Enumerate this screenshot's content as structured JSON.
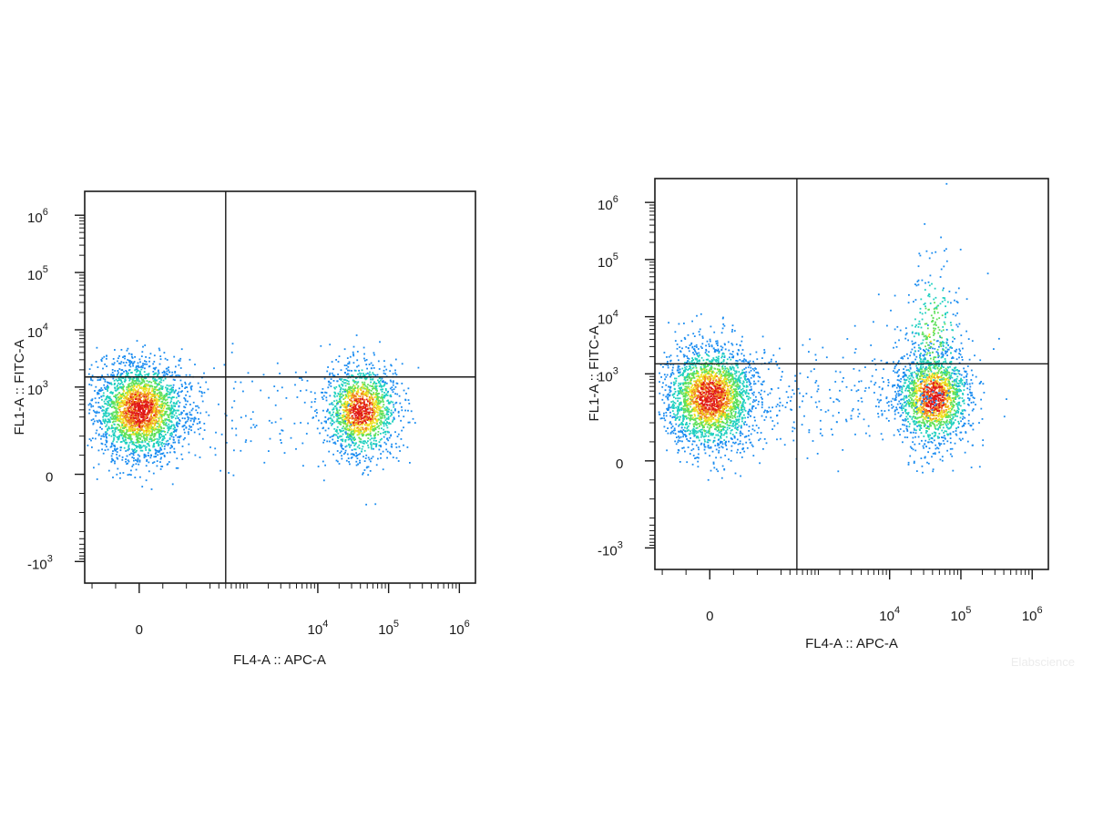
{
  "watermark": "Elabscience",
  "chart_data": [
    {
      "type": "scatter",
      "subtype": "flow-cytometry-density-dot-plot",
      "title": "",
      "xlabel": "FL4-A :: APC-A",
      "ylabel": "FL1-A :: FITC-A",
      "x_scale": "biexponential",
      "y_scale": "biexponential",
      "x_ticks": [
        {
          "value": 0,
          "base": "0",
          "exp": ""
        },
        {
          "value": 10000,
          "base": "10",
          "exp": "4"
        },
        {
          "value": 100000,
          "base": "10",
          "exp": "5"
        },
        {
          "value": 1000000,
          "base": "10",
          "exp": "6"
        }
      ],
      "y_ticks": [
        {
          "value": -1000,
          "base": "-10",
          "exp": "3"
        },
        {
          "value": 0,
          "base": "0",
          "exp": ""
        },
        {
          "value": 1000,
          "base": "10",
          "exp": "3"
        },
        {
          "value": 10000,
          "base": "10",
          "exp": "4"
        },
        {
          "value": 100000,
          "base": "10",
          "exp": "5"
        },
        {
          "value": 1000000,
          "base": "10",
          "exp": "6"
        }
      ],
      "quadrant_gate": {
        "x": 500,
        "y": 1500
      },
      "populations": [
        {
          "name": "",
          "x_center": 0,
          "y_center": 400,
          "events": 2600
        },
        {
          "name": "",
          "x_center": 40000,
          "y_center": 400,
          "events": 1500
        },
        {
          "name": "",
          "x_center": 2000,
          "y_center": 400,
          "events": 130
        }
      ],
      "grid": false,
      "legend": "none"
    },
    {
      "type": "scatter",
      "subtype": "flow-cytometry-density-dot-plot",
      "title": "",
      "xlabel": "FL4-A :: APC-A",
      "ylabel": "FL1-A :: FITC-A",
      "x_scale": "biexponential",
      "y_scale": "biexponential",
      "x_ticks": [
        {
          "value": 0,
          "base": "0",
          "exp": ""
        },
        {
          "value": 10000,
          "base": "10",
          "exp": "4"
        },
        {
          "value": 100000,
          "base": "10",
          "exp": "5"
        },
        {
          "value": 1000000,
          "base": "10",
          "exp": "6"
        }
      ],
      "y_ticks": [
        {
          "value": -1000,
          "base": "-10",
          "exp": "3"
        },
        {
          "value": 0,
          "base": "0",
          "exp": ""
        },
        {
          "value": 1000,
          "base": "10",
          "exp": "3"
        },
        {
          "value": 10000,
          "base": "10",
          "exp": "4"
        },
        {
          "value": 100000,
          "base": "10",
          "exp": "5"
        },
        {
          "value": 1000000,
          "base": "10",
          "exp": "6"
        }
      ],
      "quadrant_gate": {
        "x": 500,
        "y": 1500
      },
      "populations": [
        {
          "name": "",
          "x_center": 0,
          "y_center": 400,
          "events": 2600
        },
        {
          "name": "",
          "x_center": 40000,
          "y_center": 400,
          "events": 1700
        },
        {
          "name": "",
          "x_center": 40000,
          "y_center": 5000,
          "events": 300
        },
        {
          "name": "",
          "x_center": 2000,
          "y_center": 400,
          "events": 220
        }
      ],
      "grid": false,
      "legend": "none"
    }
  ]
}
